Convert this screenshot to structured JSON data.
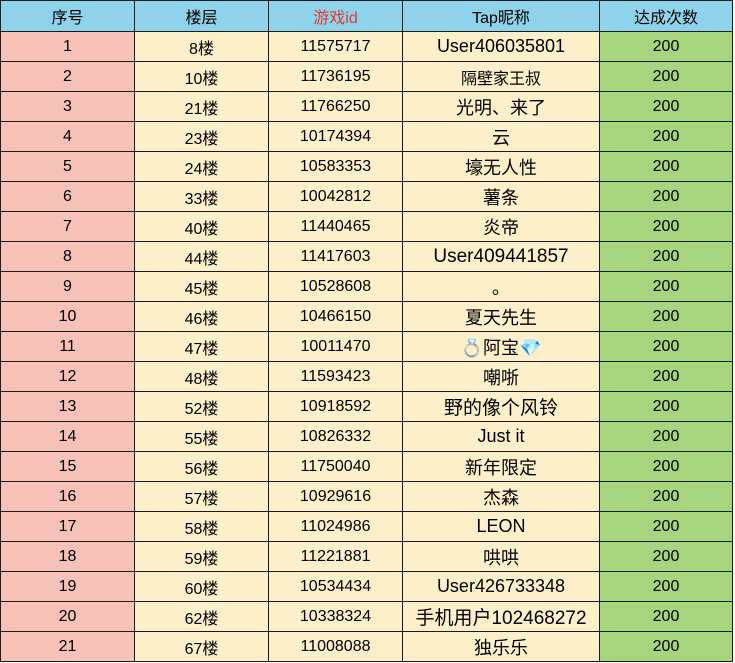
{
  "table": {
    "headers": {
      "index": "序号",
      "floor": "楼层",
      "game_id": "游戏id",
      "tap_nickname": "Tap昵称",
      "times": "达成次数"
    },
    "rows": [
      {
        "index": "1",
        "floor": "8楼",
        "game_id": "11575717",
        "nickname": "User406035801",
        "times": "200"
      },
      {
        "index": "2",
        "floor": "10楼",
        "game_id": "11736195",
        "nickname": "隔壁家王叔",
        "times": "200"
      },
      {
        "index": "3",
        "floor": "21楼",
        "game_id": "11766250",
        "nickname": "光明、来了",
        "times": "200"
      },
      {
        "index": "4",
        "floor": "23楼",
        "game_id": "10174394",
        "nickname": "云",
        "times": "200"
      },
      {
        "index": "5",
        "floor": "24楼",
        "game_id": "10583353",
        "nickname": "壕无人性",
        "times": "200"
      },
      {
        "index": "6",
        "floor": "33楼",
        "game_id": "10042812",
        "nickname": "薯条",
        "times": "200"
      },
      {
        "index": "7",
        "floor": "40楼",
        "game_id": "11440465",
        "nickname": "炎帝",
        "times": "200"
      },
      {
        "index": "8",
        "floor": "44楼",
        "game_id": "11417603",
        "nickname": "User409441857",
        "times": "200"
      },
      {
        "index": "9",
        "floor": "45楼",
        "game_id": "10528608",
        "nickname": "。",
        "times": "200"
      },
      {
        "index": "10",
        "floor": "46楼",
        "game_id": "10466150",
        "nickname": "夏天先生",
        "times": "200"
      },
      {
        "index": "11",
        "floor": "47楼",
        "game_id": "10011470",
        "nickname": "💍阿宝💎",
        "times": "200"
      },
      {
        "index": "12",
        "floor": "48楼",
        "game_id": "11593423",
        "nickname": "嘲哳",
        "times": "200"
      },
      {
        "index": "13",
        "floor": "52楼",
        "game_id": "10918592",
        "nickname": "野的像个风铃",
        "times": "200"
      },
      {
        "index": "14",
        "floor": "55楼",
        "game_id": "10826332",
        "nickname": "Just it",
        "times": "200"
      },
      {
        "index": "15",
        "floor": "56楼",
        "game_id": "11750040",
        "nickname": "新年限定",
        "times": "200"
      },
      {
        "index": "16",
        "floor": "57楼",
        "game_id": "10929616",
        "nickname": "杰森",
        "times": "200"
      },
      {
        "index": "17",
        "floor": "58楼",
        "game_id": "11024986",
        "nickname": "LEON",
        "times": "200"
      },
      {
        "index": "18",
        "floor": "59楼",
        "game_id": "11221881",
        "nickname": "哄哄",
        "times": "200"
      },
      {
        "index": "19",
        "floor": "60楼",
        "game_id": "10534434",
        "nickname": "User426733348",
        "times": "200"
      },
      {
        "index": "20",
        "floor": "62楼",
        "game_id": "10338324",
        "nickname": "手机用户102468272",
        "times": "200"
      },
      {
        "index": "21",
        "floor": "67楼",
        "game_id": "11008088",
        "nickname": "独乐乐",
        "times": "200"
      }
    ]
  },
  "colors": {
    "header_bg": "#8fd3ea",
    "header_red_text": "#e0393b",
    "index_bg": "#f6c2b7",
    "body_bg": "#fdefc9",
    "count_bg": "#a6d57d",
    "selection": "#4a7bd6"
  }
}
